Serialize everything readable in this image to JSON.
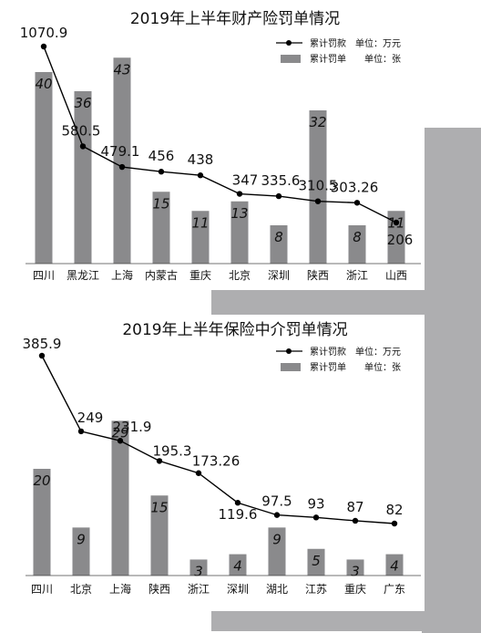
{
  "colors": {
    "bar": "#8a8a8c",
    "line": "#000000",
    "backdrop": "#aeaeb0"
  },
  "chart_data": [
    {
      "type": "bar",
      "title": "2019年上半年财产险罚单情况",
      "legend": [
        {
          "label": "累计罚款",
          "unit": "单位：万元",
          "marker": "line"
        },
        {
          "label": "累计罚单",
          "unit": "单位：张",
          "marker": "bar"
        }
      ],
      "legend_position": "top-right",
      "categories": [
        "四川",
        "黑龙江",
        "上海",
        "内蒙古",
        "重庆",
        "北京",
        "深圳",
        "陕西",
        "浙江",
        "山西"
      ],
      "series": [
        {
          "name": "累计罚单",
          "type": "bar",
          "values": [
            40,
            36,
            43,
            15,
            11,
            13,
            8,
            32,
            8,
            11
          ]
        },
        {
          "name": "累计罚款",
          "type": "line",
          "values": [
            1070.9,
            580.5,
            479.1,
            456,
            438,
            347,
            335.6,
            310.5,
            303.26,
            206
          ]
        }
      ],
      "bar_labels": [
        "40",
        "36",
        "43",
        "15",
        "11",
        "13",
        "8",
        "32",
        "8",
        "11"
      ],
      "line_labels": [
        "1070.9",
        "580.5",
        "479.1",
        "456",
        "438",
        "347",
        "335.6",
        "310.5",
        "303.26",
        "206"
      ],
      "grid": false
    },
    {
      "type": "bar",
      "title": "2019年上半年保险中介罚单情况",
      "legend": [
        {
          "label": "累计罚款",
          "unit": "单位：万元",
          "marker": "line"
        },
        {
          "label": "累计罚单",
          "unit": "单位：张",
          "marker": "bar"
        }
      ],
      "legend_position": "top-right",
      "categories": [
        "四川",
        "北京",
        "上海",
        "陕西",
        "浙江",
        "深圳",
        "湖北",
        "江苏",
        "重庆",
        "广东"
      ],
      "series": [
        {
          "name": "累计罚单",
          "type": "bar",
          "values": [
            20,
            9,
            29,
            15,
            3,
            4,
            9,
            5,
            3,
            4
          ]
        },
        {
          "name": "累计罚款",
          "type": "line",
          "values": [
            385.9,
            249,
            231.9,
            195.3,
            173.26,
            119.6,
            97.5,
            93,
            87,
            82
          ]
        }
      ],
      "bar_labels": [
        "20",
        "9",
        "29",
        "15",
        "3",
        "4",
        "9",
        "5",
        "3",
        "4"
      ],
      "line_labels": [
        "385.9",
        "249",
        "231.9",
        "195.3",
        "173.26",
        "119.6",
        "97.5",
        "93",
        "87",
        "82"
      ],
      "grid": false
    }
  ]
}
